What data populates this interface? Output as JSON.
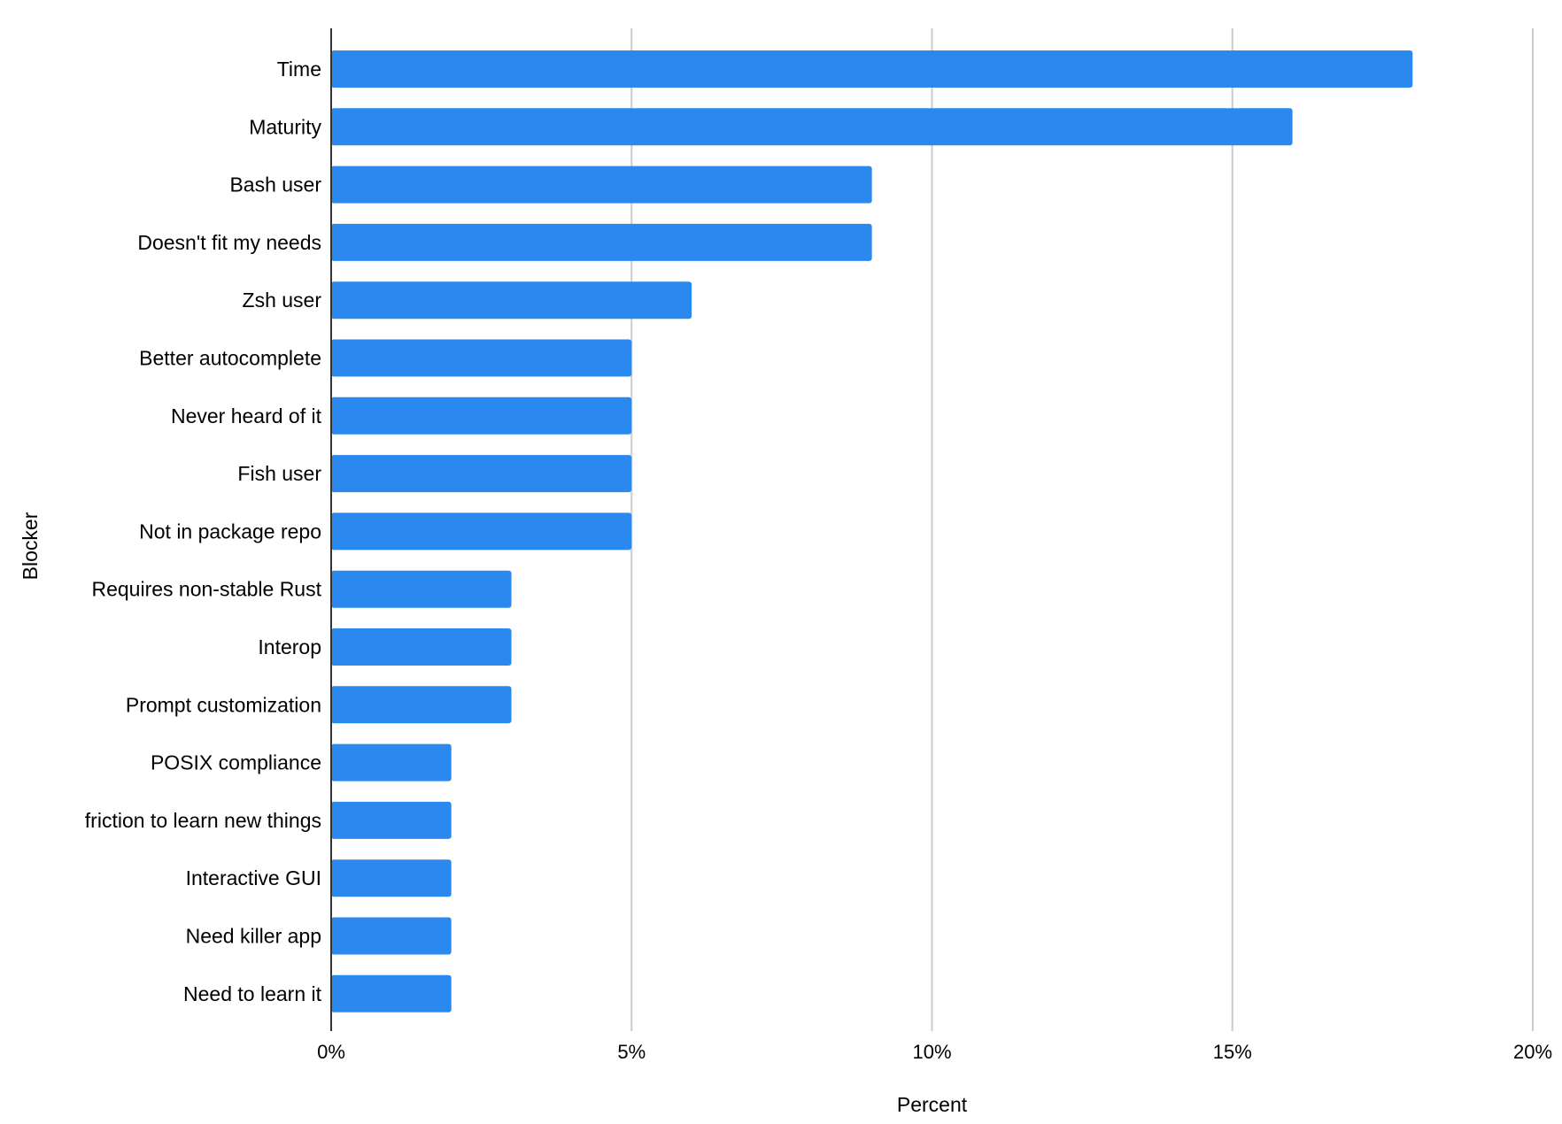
{
  "chart_data": {
    "type": "bar",
    "orientation": "horizontal",
    "title": "",
    "xlabel": "Percent",
    "ylabel": "Blocker",
    "xlim": [
      0,
      20
    ],
    "x_ticks": [
      "0%",
      "5%",
      "10%",
      "15%",
      "20%"
    ],
    "x_tick_values": [
      0,
      5,
      10,
      15,
      20
    ],
    "grid": "vertical",
    "legend": "none",
    "bar_color": "#2a88ee",
    "categories": [
      "Time",
      "Maturity",
      "Bash user",
      "Doesn't fit my needs",
      "Zsh user",
      "Better autocomplete",
      "Never heard of it",
      "Fish user",
      "Not in package repo",
      "Requires non-stable Rust",
      "Interop",
      "Prompt customization",
      "POSIX compliance",
      "friction to learn new things",
      "Interactive GUI",
      "Need killer app",
      "Need to learn it"
    ],
    "values": [
      18,
      16,
      9,
      9,
      6,
      5,
      5,
      5,
      5,
      3,
      3,
      3,
      2,
      2,
      2,
      2,
      2
    ]
  }
}
